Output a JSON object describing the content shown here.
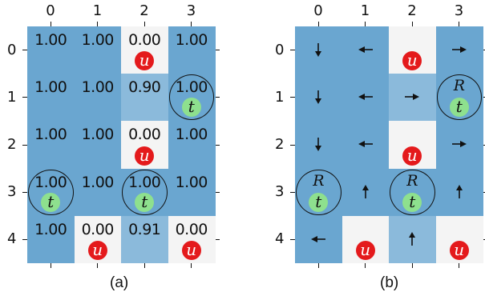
{
  "panels": [
    {
      "id": "a",
      "caption": "(a)",
      "col_labels": [
        "0",
        "1",
        "2",
        "3"
      ],
      "row_labels": [
        "0",
        "1",
        "2",
        "3",
        "4"
      ],
      "values": [
        [
          "1.00",
          "1.00",
          "0.00",
          "1.00"
        ],
        [
          "1.00",
          "1.00",
          "0.90",
          "1.00"
        ],
        [
          "1.00",
          "1.00",
          "0.00",
          "1.00"
        ],
        [
          "1.00",
          "1.00",
          "1.00",
          "1.00"
        ],
        [
          "1.00",
          "0.00",
          "0.91",
          "0.00"
        ]
      ]
    },
    {
      "id": "b",
      "caption": "(b)",
      "col_labels": [
        "0",
        "1",
        "2",
        "3"
      ],
      "row_labels": [
        "0",
        "1",
        "2",
        "3",
        "4"
      ],
      "arrows": [
        [
          "down",
          "left",
          "",
          "right"
        ],
        [
          "down",
          "left",
          "right",
          ""
        ],
        [
          "down",
          "left",
          "",
          "right"
        ],
        [
          "",
          "up",
          "",
          "up"
        ],
        [
          "left",
          "",
          "up",
          ""
        ]
      ]
    }
  ],
  "grid_value_levels": [
    [
      1,
      1,
      0,
      1
    ],
    [
      1,
      1,
      0.9,
      1
    ],
    [
      1,
      1,
      0,
      1
    ],
    [
      1,
      1,
      1,
      1
    ],
    [
      1,
      0,
      0.91,
      0
    ]
  ],
  "markers": {
    "u_letter": "u",
    "t_letter": "t",
    "r_letter": "R",
    "u_cells": [
      [
        0,
        2
      ],
      [
        2,
        2
      ],
      [
        4,
        1
      ],
      [
        4,
        3
      ]
    ],
    "t_cells": [
      [
        1,
        3
      ],
      [
        3,
        0
      ],
      [
        3,
        2
      ]
    ],
    "r_cells_panel_b": [
      [
        1,
        3
      ],
      [
        3,
        0
      ],
      [
        3,
        2
      ]
    ]
  },
  "colors": {
    "high": "#6aa6d0",
    "mid": "#8bbadb",
    "low": "#f4f4f4",
    "u_marker": "#e41a1c",
    "t_marker": "#8ee08e"
  }
}
